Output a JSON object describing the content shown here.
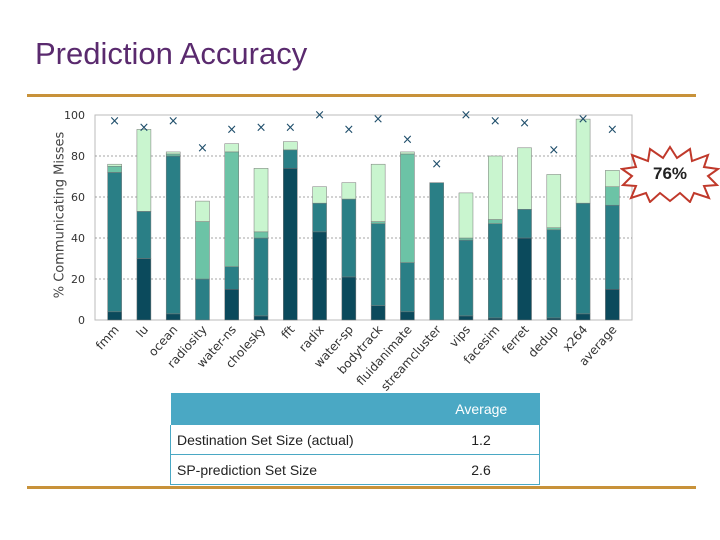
{
  "slide": {
    "title": "Prediction Accuracy",
    "callout": "76%",
    "accent_color": "#c8923a",
    "title_color": "#5a2a6e"
  },
  "chart_data": {
    "type": "bar",
    "stacked": true,
    "ylabel": "% Communicating Misses",
    "ylim": [
      0,
      100
    ],
    "yticks": [
      0,
      20,
      40,
      60,
      80,
      100
    ],
    "grid": true,
    "categories": [
      "fmm",
      "lu",
      "ocean",
      "radiosity",
      "water-ns",
      "cholesky",
      "fft",
      "radix",
      "water-sp",
      "bodytrack",
      "fluidanimate",
      "streamcluster",
      "vips",
      "facesim",
      "ferret",
      "dedup",
      "x264",
      "average"
    ],
    "series": [
      {
        "color": "#0b4a5c",
        "values": [
          4,
          30,
          3,
          0,
          15,
          2,
          74,
          43,
          21,
          7,
          4,
          0,
          2,
          1,
          40,
          1,
          3,
          15
        ]
      },
      {
        "color": "#2a7f86",
        "values": [
          68,
          23,
          77,
          20,
          11,
          38,
          9,
          14,
          38,
          40,
          24,
          67,
          37,
          46,
          14,
          43,
          54,
          41
        ]
      },
      {
        "color": "#6cc3a6",
        "values": [
          3,
          0,
          1,
          28,
          56,
          3,
          0,
          0,
          0,
          1,
          53,
          0,
          1,
          2,
          0,
          1,
          0,
          9
        ]
      },
      {
        "color": "#c9f5cf",
        "values": [
          1,
          40,
          1,
          10,
          4,
          31,
          4,
          8,
          8,
          28,
          1,
          0,
          22,
          31,
          30,
          26,
          41,
          8
        ]
      }
    ],
    "markers": {
      "symbol": "×",
      "values": [
        97,
        94,
        97,
        84,
        93,
        94,
        94,
        100,
        93,
        98,
        88,
        76,
        100,
        97,
        96,
        83,
        98,
        93
      ]
    }
  },
  "table": {
    "header": [
      "",
      "Average"
    ],
    "rows": [
      {
        "label": "Destination Set Size (actual)",
        "value": "1.2"
      },
      {
        "label": "SP-prediction Set Size",
        "value": "2.6"
      }
    ]
  }
}
